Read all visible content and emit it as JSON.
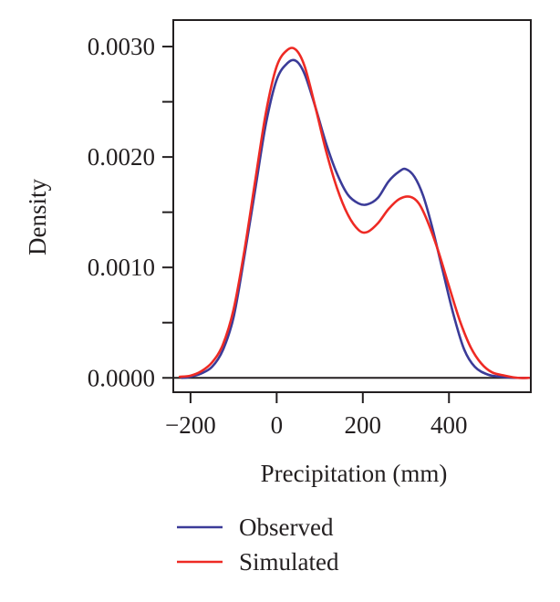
{
  "chart_data": {
    "type": "line",
    "title": "",
    "xlabel": "Precipitation (mm)",
    "ylabel": "Density",
    "xlim": [
      -240,
      590
    ],
    "ylim": [
      -0.00013,
      0.00324
    ],
    "xticks": [
      -200,
      0,
      200,
      400
    ],
    "xtick_labels": [
      "−200",
      "0",
      "200",
      "400"
    ],
    "yticks": [
      0.0,
      0.0005,
      0.001,
      0.0015,
      0.002,
      0.0025,
      0.003
    ],
    "ytick_labels": [
      "0.0000",
      "",
      "0.0010",
      "",
      "0.0020",
      "",
      "0.0030"
    ],
    "grid": false,
    "legend_position": "bottom",
    "series": [
      {
        "name": "Observed",
        "color": "#3b3b98",
        "x": [
          -220,
          -200,
          -175,
          -150,
          -125,
          -100,
          -75,
          -50,
          -25,
          0,
          25,
          45,
          65,
          90,
          115,
          140,
          165,
          190,
          210,
          235,
          260,
          285,
          300,
          320,
          340,
          360,
          385,
          410,
          435,
          460,
          490,
          520,
          560,
          585
        ],
        "y": [
          0.0,
          1e-05,
          4e-05,
          0.0001,
          0.00025,
          0.00055,
          0.0011,
          0.0017,
          0.0023,
          0.0027,
          0.00285,
          0.00287,
          0.00275,
          0.00245,
          0.00212,
          0.00185,
          0.00166,
          0.00158,
          0.00157,
          0.00163,
          0.00178,
          0.00187,
          0.00189,
          0.00182,
          0.00165,
          0.00138,
          0.00098,
          0.00058,
          0.00026,
          0.0001,
          3e-05,
          1e-05,
          0.0,
          0.0
        ]
      },
      {
        "name": "Simulated",
        "color": "#ee2a24",
        "x": [
          -225,
          -200,
          -175,
          -150,
          -125,
          -100,
          -75,
          -50,
          -25,
          0,
          25,
          45,
          65,
          90,
          115,
          140,
          165,
          190,
          210,
          235,
          260,
          285,
          310,
          330,
          350,
          375,
          400,
          425,
          450,
          475,
          500,
          530,
          560,
          585
        ],
        "y": [
          1e-05,
          2e-05,
          6e-05,
          0.00014,
          0.0003,
          0.00062,
          0.00115,
          0.00178,
          0.0024,
          0.00282,
          0.00297,
          0.00297,
          0.00282,
          0.00245,
          0.00205,
          0.00172,
          0.00148,
          0.00134,
          0.00132,
          0.0014,
          0.00153,
          0.00162,
          0.00164,
          0.00158,
          0.00142,
          0.00115,
          0.00083,
          0.00052,
          0.00028,
          0.00013,
          5e-05,
          2e-05,
          0.0,
          0.0
        ]
      }
    ]
  }
}
